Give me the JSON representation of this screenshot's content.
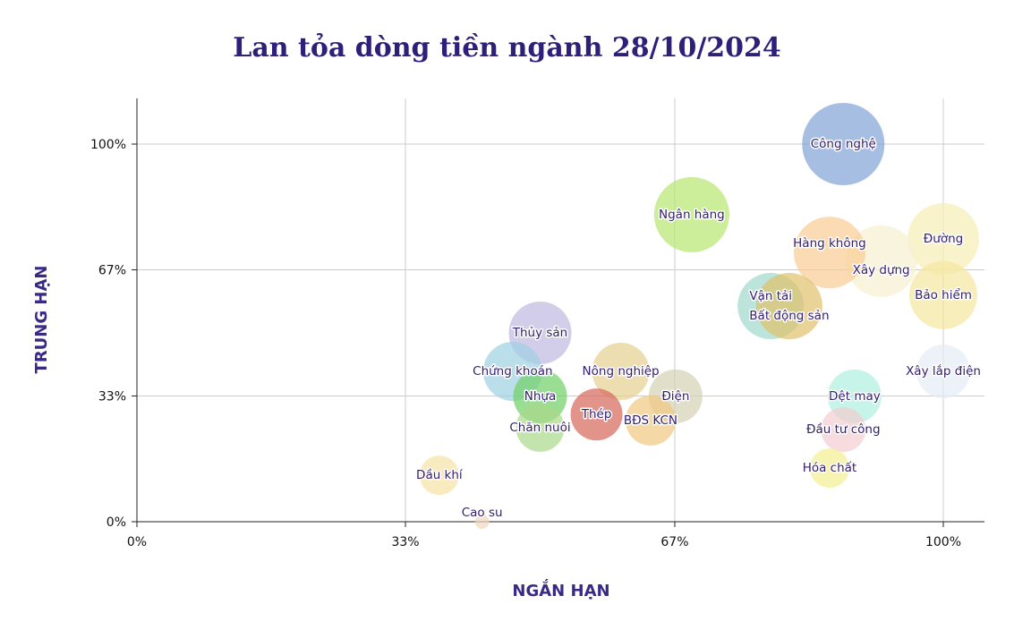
{
  "chart_data": {
    "type": "scatter",
    "title": "Lan tỏa dòng tiền ngành 28/10/2024",
    "xlabel": "NGẮN HẠN",
    "ylabel": "TRUNG HẠN",
    "xlim": [
      0,
      1.05
    ],
    "ylim": [
      0,
      1.05
    ],
    "xticks": [
      {
        "v": 0,
        "label": "0%"
      },
      {
        "v": 0.333,
        "label": "33%"
      },
      {
        "v": 0.667,
        "label": "67%"
      },
      {
        "v": 1,
        "label": "100%"
      }
    ],
    "yticks": [
      {
        "v": 0,
        "label": "0%"
      },
      {
        "v": 0.333,
        "label": "33%"
      },
      {
        "v": 0.667,
        "label": "67%"
      },
      {
        "v": 1,
        "label": "100%"
      }
    ],
    "grid": true,
    "points": [
      {
        "name": "Công nghệ",
        "x": 0.876,
        "y": 1.0,
        "size": 46,
        "color": "#7fa3d6"
      },
      {
        "name": "Ngân hàng",
        "x": 0.688,
        "y": 0.813,
        "size": 42,
        "color": "#b6e66e"
      },
      {
        "name": "Đường",
        "x": 1.0,
        "y": 0.749,
        "size": 40,
        "color": "#f7eeb5"
      },
      {
        "name": "Xây dựng",
        "x": 0.923,
        "y": 0.69,
        "size": 40,
        "color": "#f6efcf"
      },
      {
        "name": "Hàng không",
        "x": 0.859,
        "y": 0.713,
        "size": 40,
        "color": "#f9cc94"
      },
      {
        "name": "Bảo hiểm",
        "x": 1.0,
        "y": 0.6,
        "size": 38,
        "color": "#f5e7a0"
      },
      {
        "name": "Vận tải",
        "x": 0.786,
        "y": 0.571,
        "size": 37,
        "color": "#9fd8cc"
      },
      {
        "name": "Bất động sản",
        "x": 0.809,
        "y": 0.571,
        "size": 37,
        "color": "#e0c06a"
      },
      {
        "name": "Thủy sản",
        "x": 0.5,
        "y": 0.5,
        "size": 35,
        "color": "#bfb9e0"
      },
      {
        "name": "Chứng khoán",
        "x": 0.466,
        "y": 0.398,
        "size": 33,
        "color": "#9ed0e3"
      },
      {
        "name": "Nông nghiệp",
        "x": 0.6,
        "y": 0.398,
        "size": 32,
        "color": "#e6d090"
      },
      {
        "name": "Xây lắp điện",
        "x": 1.0,
        "y": 0.398,
        "size": 30,
        "color": "#e4ecf3"
      },
      {
        "name": "Điện",
        "x": 0.668,
        "y": 0.332,
        "size": 30,
        "color": "#d4d2b2"
      },
      {
        "name": "Nhựa",
        "x": 0.5,
        "y": 0.332,
        "size": 30,
        "color": "#6fd065"
      },
      {
        "name": "Dệt may",
        "x": 0.89,
        "y": 0.332,
        "size": 30,
        "color": "#aef0e0"
      },
      {
        "name": "BĐS KCN",
        "x": 0.637,
        "y": 0.268,
        "size": 28,
        "color": "#efc780"
      },
      {
        "name": "Thép",
        "x": 0.57,
        "y": 0.284,
        "size": 29,
        "color": "#d6665a"
      },
      {
        "name": "Chăn nuôi",
        "x": 0.5,
        "y": 0.249,
        "size": 27,
        "color": "#a9d98a"
      },
      {
        "name": "Đầu tư công",
        "x": 0.876,
        "y": 0.244,
        "size": 25,
        "color": "#f2cdd0"
      },
      {
        "name": "Hóa chất",
        "x": 0.859,
        "y": 0.142,
        "size": 22,
        "color": "#f3ee8e"
      },
      {
        "name": "Dầu khí",
        "x": 0.375,
        "y": 0.123,
        "size": 22,
        "color": "#f5e3a4"
      },
      {
        "name": "Cao su",
        "x": 0.428,
        "y": 0.0,
        "size": 8,
        "color": "#f0d7bf"
      }
    ]
  }
}
